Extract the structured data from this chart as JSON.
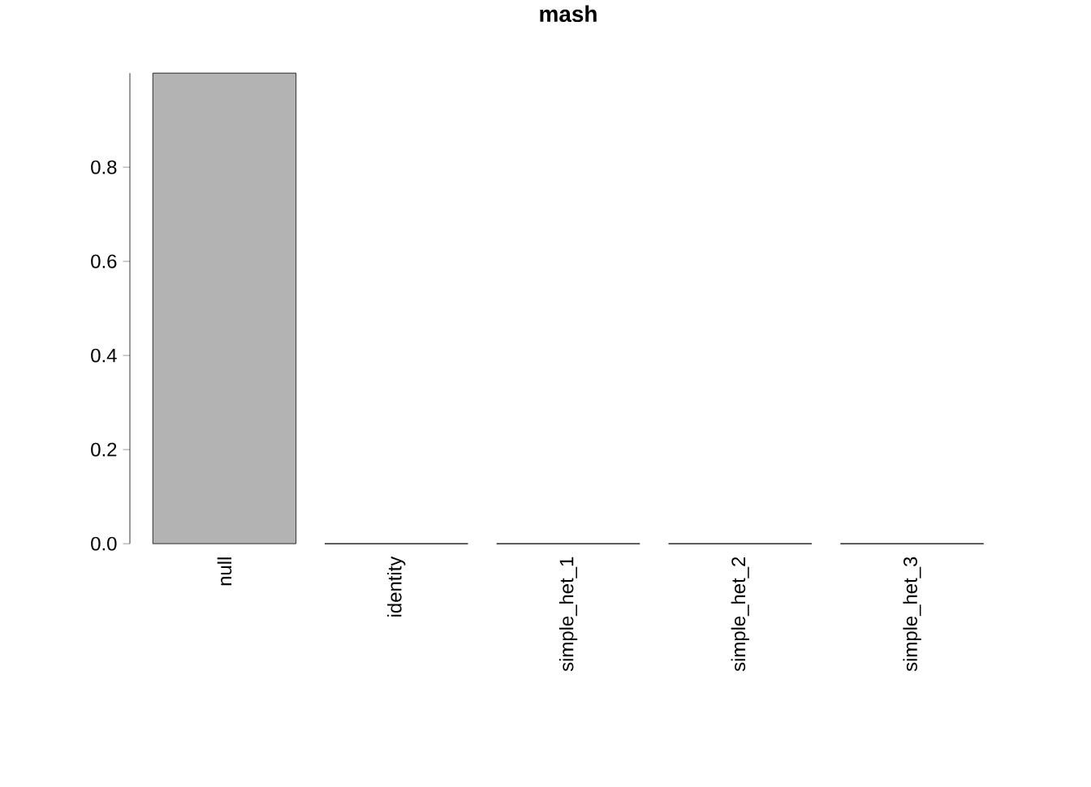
{
  "chart_data": {
    "type": "bar",
    "title": "mash",
    "categories": [
      "null",
      "identity",
      "simple_het_1",
      "simple_het_2",
      "simple_het_3"
    ],
    "values": [
      1.0,
      0,
      0,
      0,
      0
    ],
    "color": "#b3b3b3",
    "ylim": [
      0,
      1.0
    ],
    "yticks": [
      {
        "value": 0,
        "label": "0.0"
      },
      0.2,
      0.4,
      0.6,
      0.8
    ]
  }
}
